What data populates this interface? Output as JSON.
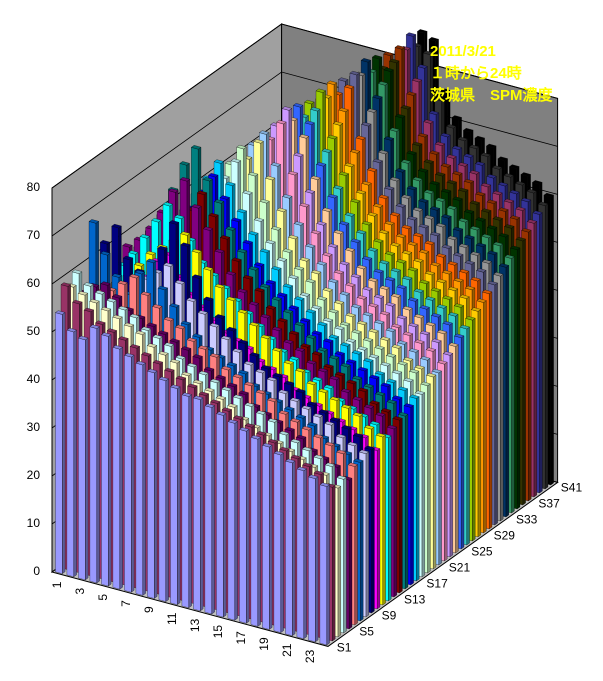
{
  "chart_data": {
    "type": "bar3d",
    "title_lines": [
      "2011/3/21",
      "１時から24時",
      "茨城県　SPM濃度"
    ],
    "categories": [
      1,
      null,
      3,
      null,
      5,
      null,
      7,
      null,
      9,
      null,
      11,
      null,
      13,
      null,
      15,
      null,
      17,
      null,
      19,
      null,
      21,
      null,
      23,
      null
    ],
    "ylim": [
      0,
      80
    ],
    "yticks": [
      0,
      10,
      20,
      30,
      40,
      50,
      60,
      70,
      80
    ],
    "grid": true,
    "series": [
      {
        "name": "S1",
        "color": "#9999ff",
        "values": [
          54,
          51,
          50,
          53,
          52,
          50,
          49,
          48,
          47,
          46,
          45,
          44,
          44,
          43,
          42,
          41,
          40,
          39,
          38,
          37,
          36,
          35,
          34,
          33
        ]
      },
      {
        "name": null,
        "color": "#993366",
        "values": [
          59,
          56,
          55,
          53,
          52,
          51,
          50,
          49,
          48,
          47,
          46,
          45,
          44,
          43,
          42,
          41,
          40,
          39,
          38,
          37,
          36,
          35,
          34,
          32
        ]
      },
      {
        "name": null,
        "color": "#ffffcc",
        "values": [
          58,
          57,
          56,
          55,
          54,
          53,
          52,
          50,
          49,
          48,
          46,
          45,
          44,
          43,
          42,
          40,
          39,
          38,
          37,
          36,
          35,
          34,
          33,
          31
        ]
      },
      {
        "name": null,
        "color": "#ccffff",
        "values": [
          60,
          58,
          57,
          56,
          55,
          54,
          52,
          51,
          50,
          48,
          47,
          46,
          45,
          44,
          43,
          42,
          41,
          40,
          38,
          37,
          36,
          35,
          34,
          32
        ]
      },
      {
        "name": "S5",
        "color": "#660066",
        "values": [
          55,
          57,
          58,
          56,
          54,
          53,
          52,
          51,
          50,
          49,
          48,
          46,
          45,
          44,
          43,
          41,
          40,
          39,
          38,
          37,
          35,
          34,
          33,
          31
        ]
      },
      {
        "name": null,
        "color": "#ff8080",
        "values": [
          53,
          55,
          56,
          58,
          60,
          57,
          55,
          53,
          52,
          50,
          49,
          48,
          46,
          45,
          44,
          43,
          42,
          40,
          39,
          38,
          37,
          36,
          35,
          33
        ]
      },
      {
        "name": null,
        "color": "#0066cc",
        "values": [
          68,
          62,
          58,
          55,
          60,
          63,
          58,
          55,
          52,
          50,
          48,
          47,
          46,
          45,
          43,
          42,
          41,
          40,
          39,
          38,
          36,
          35,
          34,
          33
        ]
      },
      {
        "name": null,
        "color": "#ccccff",
        "values": [
          50,
          52,
          54,
          56,
          58,
          60,
          62,
          59,
          56,
          54,
          52,
          50,
          48,
          46,
          45,
          44,
          42,
          41,
          40,
          39,
          38,
          36,
          35,
          34
        ]
      },
      {
        "name": "S9",
        "color": "#000080",
        "values": [
          62,
          66,
          60,
          58,
          57,
          64,
          70,
          66,
          60,
          56,
          53,
          51,
          49,
          47,
          45,
          44,
          43,
          42,
          40,
          39,
          38,
          37,
          36,
          34
        ]
      },
      {
        "name": null,
        "color": "#ff00ff",
        "values": [
          48,
          50,
          52,
          56,
          60,
          62,
          58,
          55,
          53,
          51,
          49,
          48,
          47,
          45,
          44,
          43,
          41,
          40,
          39,
          38,
          37,
          36,
          35,
          33
        ]
      },
      {
        "name": null,
        "color": "#ffff00",
        "values": [
          52,
          54,
          57,
          60,
          62,
          64,
          66,
          63,
          60,
          57,
          55,
          53,
          51,
          49,
          47,
          45,
          44,
          42,
          41,
          40,
          39,
          38,
          36,
          35
        ]
      },
      {
        "name": null,
        "color": "#00ffff",
        "values": [
          55,
          58,
          62,
          66,
          70,
          68,
          64,
          60,
          58,
          56,
          54,
          52,
          50,
          48,
          46,
          45,
          43,
          42,
          41,
          39,
          38,
          37,
          36,
          34
        ]
      },
      {
        "name": "S13",
        "color": "#800080",
        "values": [
          58,
          60,
          63,
          67,
          72,
          75,
          70,
          66,
          62,
          58,
          55,
          53,
          51,
          49,
          47,
          46,
          44,
          43,
          42,
          40,
          39,
          38,
          37,
          35
        ]
      },
      {
        "name": null,
        "color": "#800000",
        "values": [
          50,
          53,
          56,
          60,
          64,
          68,
          72,
          68,
          64,
          60,
          57,
          55,
          52,
          50,
          48,
          46,
          45,
          43,
          42,
          41,
          40,
          38,
          37,
          36
        ]
      },
      {
        "name": null,
        "color": "#008080",
        "values": [
          56,
          60,
          64,
          70,
          76,
          80,
          74,
          70,
          65,
          61,
          58,
          55,
          53,
          51,
          49,
          47,
          45,
          44,
          43,
          41,
          40,
          39,
          38,
          36
        ]
      },
      {
        "name": null,
        "color": "#0000ff",
        "values": [
          52,
          55,
          58,
          62,
          66,
          70,
          74,
          70,
          66,
          62,
          58,
          55,
          53,
          51,
          49,
          47,
          46,
          44,
          43,
          42,
          41,
          40,
          38,
          37
        ]
      },
      {
        "name": "S17",
        "color": "#00ccff",
        "values": [
          54,
          57,
          60,
          64,
          68,
          72,
          76,
          72,
          67,
          63,
          60,
          57,
          54,
          52,
          50,
          48,
          46,
          45,
          44,
          43,
          41,
          40,
          39,
          38
        ]
      },
      {
        "name": null,
        "color": "#ccffff",
        "values": [
          50,
          53,
          56,
          60,
          64,
          68,
          72,
          76,
          70,
          65,
          61,
          58,
          55,
          52,
          50,
          48,
          47,
          45,
          44,
          43,
          42,
          41,
          40,
          38
        ]
      },
      {
        "name": null,
        "color": "#ccffcc",
        "values": [
          52,
          55,
          58,
          62,
          66,
          70,
          74,
          78,
          73,
          68,
          63,
          59,
          56,
          54,
          51,
          49,
          47,
          46,
          45,
          44,
          43,
          42,
          41,
          39
        ]
      },
      {
        "name": null,
        "color": "#ffff99",
        "values": [
          48,
          51,
          55,
          59,
          63,
          67,
          71,
          75,
          79,
          72,
          66,
          61,
          57,
          55,
          52,
          50,
          48,
          47,
          46,
          45,
          44,
          42,
          41,
          40
        ]
      },
      {
        "name": "S21",
        "color": "#99ccff",
        "values": [
          50,
          53,
          57,
          61,
          65,
          69,
          73,
          77,
          80,
          74,
          68,
          63,
          59,
          56,
          53,
          51,
          49,
          48,
          47,
          46,
          44,
          43,
          42,
          40
        ]
      },
      {
        "name": null,
        "color": "#ff99cc",
        "values": [
          47,
          50,
          54,
          58,
          62,
          66,
          70,
          74,
          78,
          82,
          72,
          66,
          61,
          57,
          54,
          52,
          50,
          49,
          48,
          46,
          45,
          44,
          43,
          41
        ]
      },
      {
        "name": null,
        "color": "#cc99ff",
        "values": [
          49,
          52,
          56,
          60,
          64,
          68,
          72,
          76,
          80,
          84,
          75,
          68,
          62,
          58,
          55,
          53,
          51,
          50,
          49,
          47,
          46,
          45,
          44,
          42
        ]
      },
      {
        "name": null,
        "color": "#ffcc99",
        "values": [
          46,
          49,
          53,
          57,
          61,
          65,
          69,
          73,
          77,
          81,
          78,
          70,
          64,
          60,
          57,
          54,
          52,
          51,
          50,
          48,
          47,
          46,
          45,
          43
        ]
      },
      {
        "name": "S25",
        "color": "#3366ff",
        "values": [
          48,
          51,
          55,
          59,
          63,
          67,
          71,
          75,
          79,
          83,
          80,
          72,
          66,
          61,
          58,
          55,
          53,
          52,
          51,
          49,
          48,
          47,
          46,
          44
        ]
      },
      {
        "name": null,
        "color": "#33cccc",
        "values": [
          45,
          48,
          52,
          56,
          60,
          64,
          68,
          72,
          76,
          80,
          82,
          74,
          67,
          62,
          59,
          56,
          54,
          53,
          52,
          50,
          49,
          48,
          47,
          45
        ]
      },
      {
        "name": null,
        "color": "#99cc00",
        "values": [
          47,
          50,
          54,
          58,
          62,
          66,
          70,
          74,
          78,
          82,
          85,
          76,
          69,
          64,
          60,
          57,
          55,
          54,
          53,
          51,
          50,
          49,
          48,
          46
        ]
      },
      {
        "name": null,
        "color": "#ffcc00",
        "values": [
          44,
          47,
          51,
          55,
          59,
          63,
          67,
          71,
          75,
          79,
          83,
          78,
          70,
          65,
          61,
          58,
          56,
          55,
          54,
          52,
          51,
          50,
          49,
          47
        ]
      },
      {
        "name": "S29",
        "color": "#ff9900",
        "values": [
          46,
          49,
          53,
          57,
          61,
          65,
          69,
          73,
          77,
          81,
          85,
          80,
          72,
          66,
          62,
          59,
          57,
          56,
          55,
          53,
          52,
          51,
          50,
          48
        ]
      },
      {
        "name": null,
        "color": "#ff6600",
        "values": [
          43,
          46,
          50,
          54,
          58,
          62,
          66,
          70,
          74,
          78,
          82,
          84,
          74,
          68,
          63,
          60,
          58,
          57,
          56,
          54,
          53,
          52,
          51,
          49
        ]
      },
      {
        "name": null,
        "color": "#666699",
        "values": [
          45,
          48,
          52,
          56,
          60,
          64,
          68,
          72,
          76,
          80,
          84,
          86,
          76,
          69,
          64,
          61,
          59,
          58,
          57,
          55,
          54,
          53,
          52,
          50
        ]
      },
      {
        "name": null,
        "color": "#969696",
        "values": [
          42,
          45,
          49,
          53,
          57,
          61,
          65,
          69,
          73,
          77,
          81,
          85,
          78,
          70,
          65,
          62,
          60,
          59,
          58,
          56,
          55,
          54,
          53,
          51
        ]
      },
      {
        "name": "S33",
        "color": "#003366",
        "values": [
          44,
          47,
          51,
          55,
          59,
          63,
          67,
          71,
          75,
          79,
          83,
          87,
          80,
          72,
          66,
          63,
          61,
          60,
          59,
          57,
          56,
          55,
          54,
          52
        ]
      },
      {
        "name": null,
        "color": "#339966",
        "values": [
          41,
          44,
          48,
          52,
          56,
          60,
          64,
          68,
          72,
          76,
          80,
          84,
          82,
          73,
          67,
          64,
          62,
          61,
          60,
          58,
          57,
          56,
          55,
          53
        ]
      },
      {
        "name": null,
        "color": "#003300",
        "values": [
          43,
          46,
          50,
          54,
          58,
          62,
          66,
          70,
          74,
          78,
          82,
          86,
          84,
          75,
          68,
          65,
          63,
          62,
          61,
          59,
          58,
          57,
          56,
          54
        ]
      },
      {
        "name": null,
        "color": "#333300",
        "values": [
          40,
          43,
          47,
          51,
          55,
          59,
          63,
          67,
          71,
          75,
          79,
          83,
          85,
          76,
          69,
          66,
          64,
          63,
          62,
          60,
          59,
          58,
          57,
          55
        ]
      },
      {
        "name": "S37",
        "color": "#993300",
        "values": [
          42,
          45,
          49,
          53,
          57,
          61,
          65,
          69,
          73,
          77,
          81,
          85,
          87,
          78,
          70,
          67,
          65,
          64,
          63,
          61,
          60,
          59,
          58,
          56
        ]
      },
      {
        "name": null,
        "color": "#993366",
        "values": [
          39,
          42,
          46,
          50,
          54,
          58,
          62,
          66,
          70,
          74,
          78,
          82,
          86,
          80,
          72,
          68,
          66,
          65,
          64,
          62,
          61,
          60,
          59,
          57
        ]
      },
      {
        "name": null,
        "color": "#333399",
        "values": [
          41,
          44,
          48,
          52,
          56,
          60,
          64,
          68,
          72,
          76,
          80,
          84,
          88,
          82,
          73,
          69,
          67,
          66,
          65,
          63,
          62,
          61,
          60,
          58
        ]
      },
      {
        "name": null,
        "color": "#333333",
        "values": [
          38,
          41,
          45,
          49,
          53,
          57,
          61,
          65,
          69,
          73,
          77,
          81,
          85,
          84,
          75,
          70,
          68,
          67,
          66,
          64,
          63,
          62,
          61,
          59
        ]
      },
      {
        "name": "S41",
        "color": "#000000",
        "values": [
          40,
          43,
          47,
          51,
          55,
          59,
          63,
          67,
          71,
          75,
          79,
          83,
          87,
          86,
          76,
          71,
          69,
          68,
          67,
          65,
          64,
          63,
          62,
          60
        ]
      }
    ]
  }
}
